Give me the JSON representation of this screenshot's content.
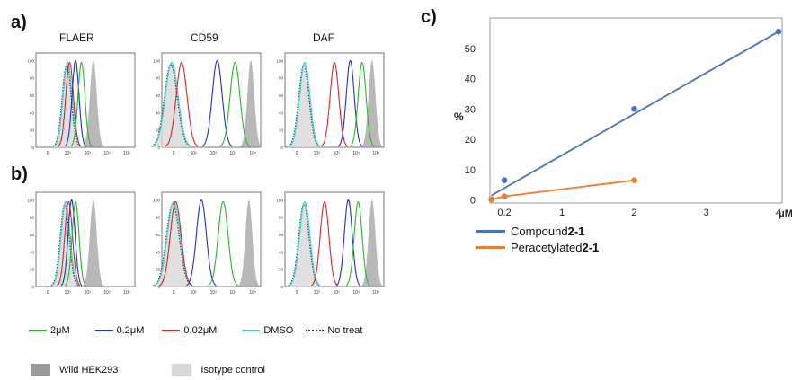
{
  "panels": {
    "a": "a)",
    "b": "b)",
    "c": "c)"
  },
  "columns": [
    "FLAER",
    "CD59",
    "DAF"
  ],
  "colors": {
    "c2uM": "#22bb22",
    "c02uM": "#1f2fd0",
    "c002uM": "#dd2222",
    "dmso": "#33d6e0",
    "notreat": "#333333",
    "wild": "#9a9a9a",
    "isotype": "#d8d8d8",
    "compound": "#4472c4",
    "peracetylated": "#ed7d31"
  },
  "histogram_axes": {
    "y_ticks": [
      "0",
      "20",
      "40",
      "60",
      "80",
      "100"
    ],
    "x_ticks": [
      "0",
      "10²",
      "10³",
      "10⁴",
      "10⁵"
    ]
  },
  "legend_a": {
    "c2uM": "2μM",
    "c02uM": "0.2μM",
    "c002uM": "0.02μM",
    "dmso": "DMSO",
    "notreat": "No treat"
  },
  "legend_b": {
    "wild": "Wild HEK293",
    "isotype": "Isotype control"
  },
  "chart_data": {
    "type": "scatter",
    "title": "",
    "xlabel": "μM",
    "ylabel": "%",
    "xlim": [
      0,
      4.05
    ],
    "ylim": [
      -1,
      60
    ],
    "x_ticks": [
      {
        "v": 0.2,
        "label": "0.2"
      },
      {
        "v": 1,
        "label": "1"
      },
      {
        "v": 2,
        "label": "2"
      },
      {
        "v": 3,
        "label": "3"
      },
      {
        "v": 4,
        "label": "4"
      }
    ],
    "y_ticks": [
      0,
      10,
      20,
      30,
      40,
      50
    ],
    "series": [
      {
        "name": "Compound 2-1",
        "name_plain": "Compound ",
        "name_bold": "2-1",
        "color": "#4472c4",
        "points": [
          [
            0.02,
            0.2
          ],
          [
            0.2,
            6.5
          ],
          [
            2,
            30
          ],
          [
            4,
            55.5
          ]
        ],
        "fit": [
          [
            0.02,
            1.5
          ],
          [
            4,
            55.5
          ]
        ]
      },
      {
        "name": "Peracetylated 2-1",
        "name_plain": "Peracetylated ",
        "name_bold": "2-1",
        "color": "#ed7d31",
        "points": [
          [
            0.02,
            0.2
          ],
          [
            0.2,
            1.2
          ],
          [
            2,
            6.5
          ]
        ],
        "fit": [
          [
            0.02,
            0.2
          ],
          [
            0.2,
            1.2
          ],
          [
            2,
            6.5
          ]
        ]
      }
    ]
  }
}
